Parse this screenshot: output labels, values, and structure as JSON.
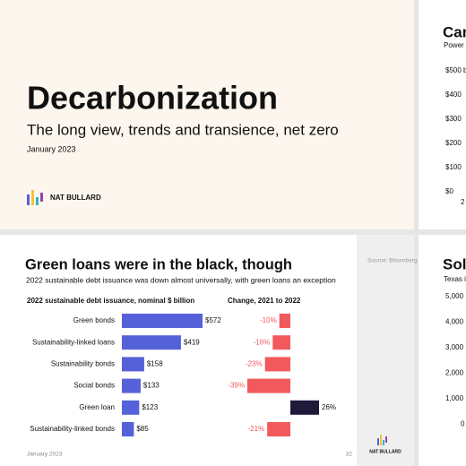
{
  "title_slide": {
    "title": "Decarbonization",
    "subtitle": "The long view, trends and transience, net zero",
    "date": "January 2023",
    "brand": "NAT BULLARD"
  },
  "slide_top_right": {
    "title": "Car",
    "subtitle": "Power",
    "axis_labels": [
      "$500 b",
      "$400",
      "$300",
      "$200",
      "$100",
      "$0",
      "2"
    ]
  },
  "slide_bottom_right": {
    "title": "Sola",
    "subtitle": "Texas i",
    "axis_labels": [
      "5,000",
      "4,000",
      "3,000",
      "2,000",
      "1,000",
      "0"
    ]
  },
  "slide": {
    "title": "Green loans were in the black, though",
    "subtitle": "2022 sustainable debt issuance was down almost universally, with green loans an exception",
    "source": "Source: Bloomberg",
    "date": "January 2023",
    "page": "32",
    "brand": "NAT BULLARD"
  },
  "chart_data": [
    {
      "type": "hbar",
      "title": "2022 sustainable debt issuance, nominal $ billion",
      "categories": [
        "Green bonds",
        "Sustainability-linked loans",
        "Sustainability bonds",
        "Social bonds",
        "Green loan",
        "Sustainability-linked bonds"
      ],
      "values": [
        572,
        419,
        158,
        133,
        123,
        85
      ],
      "value_labels": [
        "$572",
        "$419",
        "$158",
        "$133",
        "$123",
        "$85"
      ],
      "color": "#5561d8"
    },
    {
      "type": "diverging",
      "title": "Change, 2021 to 2022",
      "values": [
        -10,
        -16,
        -23,
        -39,
        26,
        -21
      ],
      "value_labels": [
        "-10%",
        "-16%",
        "-23%",
        "-39%",
        "26%",
        "-21%"
      ],
      "color_negative": "#f2595c",
      "color_positive": "#1d1a3a"
    }
  ]
}
